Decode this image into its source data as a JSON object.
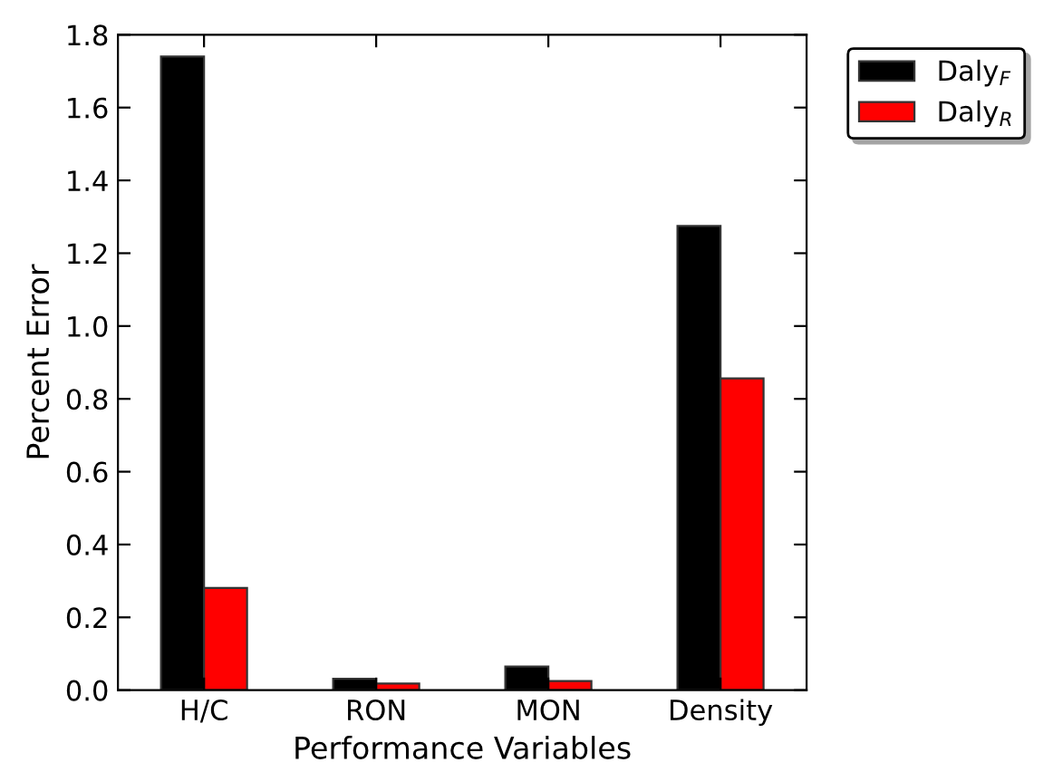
{
  "chart_data": {
    "type": "bar",
    "xlabel": "Performance Variables",
    "ylabel": "Percent Error",
    "categories": [
      "H/C",
      "RON",
      "MON",
      "Density"
    ],
    "series": [
      {
        "name": "Daly$_{F}$",
        "color": "#000000",
        "values": [
          1.74,
          0.031,
          0.065,
          1.275
        ]
      },
      {
        "name": "Daly$_{R}$",
        "color": "#ff0000",
        "values": [
          0.281,
          0.018,
          0.025,
          0.856
        ]
      }
    ],
    "ylim": [
      0,
      1.8
    ],
    "yticks": [
      {
        "value": 0,
        "label": "0.0"
      },
      {
        "value": 0.2,
        "label": "0.2"
      },
      {
        "value": 0.4,
        "label": "0.4"
      },
      {
        "value": 0.6,
        "label": "0.6"
      },
      {
        "value": 0.8,
        "label": "0.8"
      },
      {
        "value": 1.0,
        "label": "1.0"
      },
      {
        "value": 1.2,
        "label": "1.2"
      },
      {
        "value": 1.4,
        "label": "1.4"
      },
      {
        "value": 1.6,
        "label": "1.6"
      },
      {
        "value": 1.8,
        "label": "1.8"
      }
    ],
    "grid": false,
    "legend": "top right"
  }
}
